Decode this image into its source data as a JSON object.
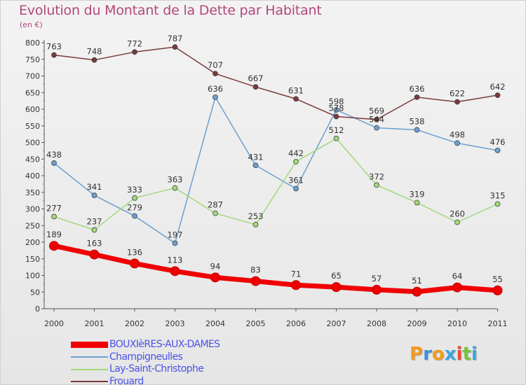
{
  "title": "Evolution du Montant de la Dette par Habitant",
  "subtitle": "(en €)",
  "logo": {
    "letters": [
      {
        "ch": "P",
        "color": "#f39a1e"
      },
      {
        "ch": "r",
        "color": "#3f8fe0"
      },
      {
        "ch": "o",
        "color": "#f39a1e"
      },
      {
        "ch": "x",
        "color": "#3aa6e0"
      },
      {
        "ch": "i",
        "color": "#e94a3c"
      },
      {
        "ch": "t",
        "color": "#7ac143"
      },
      {
        "ch": "i",
        "color": "#3aa6e0"
      }
    ]
  },
  "chart_data": {
    "type": "line",
    "x": [
      "2000",
      "2001",
      "2002",
      "2003",
      "2004",
      "2005",
      "2006",
      "2007",
      "2008",
      "2009",
      "2010",
      "2011"
    ],
    "ylim": [
      0,
      800
    ],
    "yticks": [
      "0",
      "50",
      "100",
      "150",
      "200",
      "250",
      "300",
      "350",
      "400",
      "450",
      "500",
      "550",
      "600",
      "650",
      "700",
      "750",
      "800"
    ],
    "grid": false,
    "legend_position": "bottom-left",
    "series": [
      {
        "name": "BOUXIèRES-AUX-DAMES",
        "color": "#f00000",
        "values": [
          189,
          163,
          136,
          113,
          94,
          83,
          71,
          65,
          57,
          51,
          64,
          55
        ],
        "labels": [
          "189",
          "163",
          "136",
          "113",
          "94",
          "83",
          "71",
          "65",
          "57",
          "51",
          "64",
          "55"
        ]
      },
      {
        "name": "Champigneulles",
        "color": "#6b9fd0",
        "values": [
          438,
          341,
          279,
          197,
          636,
          431,
          361,
          598,
          544,
          538,
          498,
          476
        ],
        "labels": [
          "438",
          "341",
          "279",
          "197",
          "636",
          "431",
          "361",
          "598",
          "544",
          "538",
          "498",
          "476"
        ]
      },
      {
        "name": "Lay-Saint-Christophe",
        "color": "#a3d97a",
        "values": [
          277,
          237,
          333,
          363,
          287,
          253,
          442,
          512,
          372,
          319,
          260,
          315
        ],
        "labels": [
          "277",
          "237",
          "333",
          "363",
          "287",
          "253",
          "442",
          "512",
          "372",
          "319",
          "260",
          "315"
        ]
      },
      {
        "name": "Frouard",
        "color": "#7a3a3a",
        "values": [
          763,
          748,
          772,
          787,
          707,
          667,
          631,
          578,
          569,
          636,
          622,
          642
        ],
        "labels": [
          "763",
          "748",
          "772",
          "787",
          "707",
          "667",
          "631",
          "578",
          "569",
          "636",
          "622",
          "642"
        ]
      }
    ]
  }
}
